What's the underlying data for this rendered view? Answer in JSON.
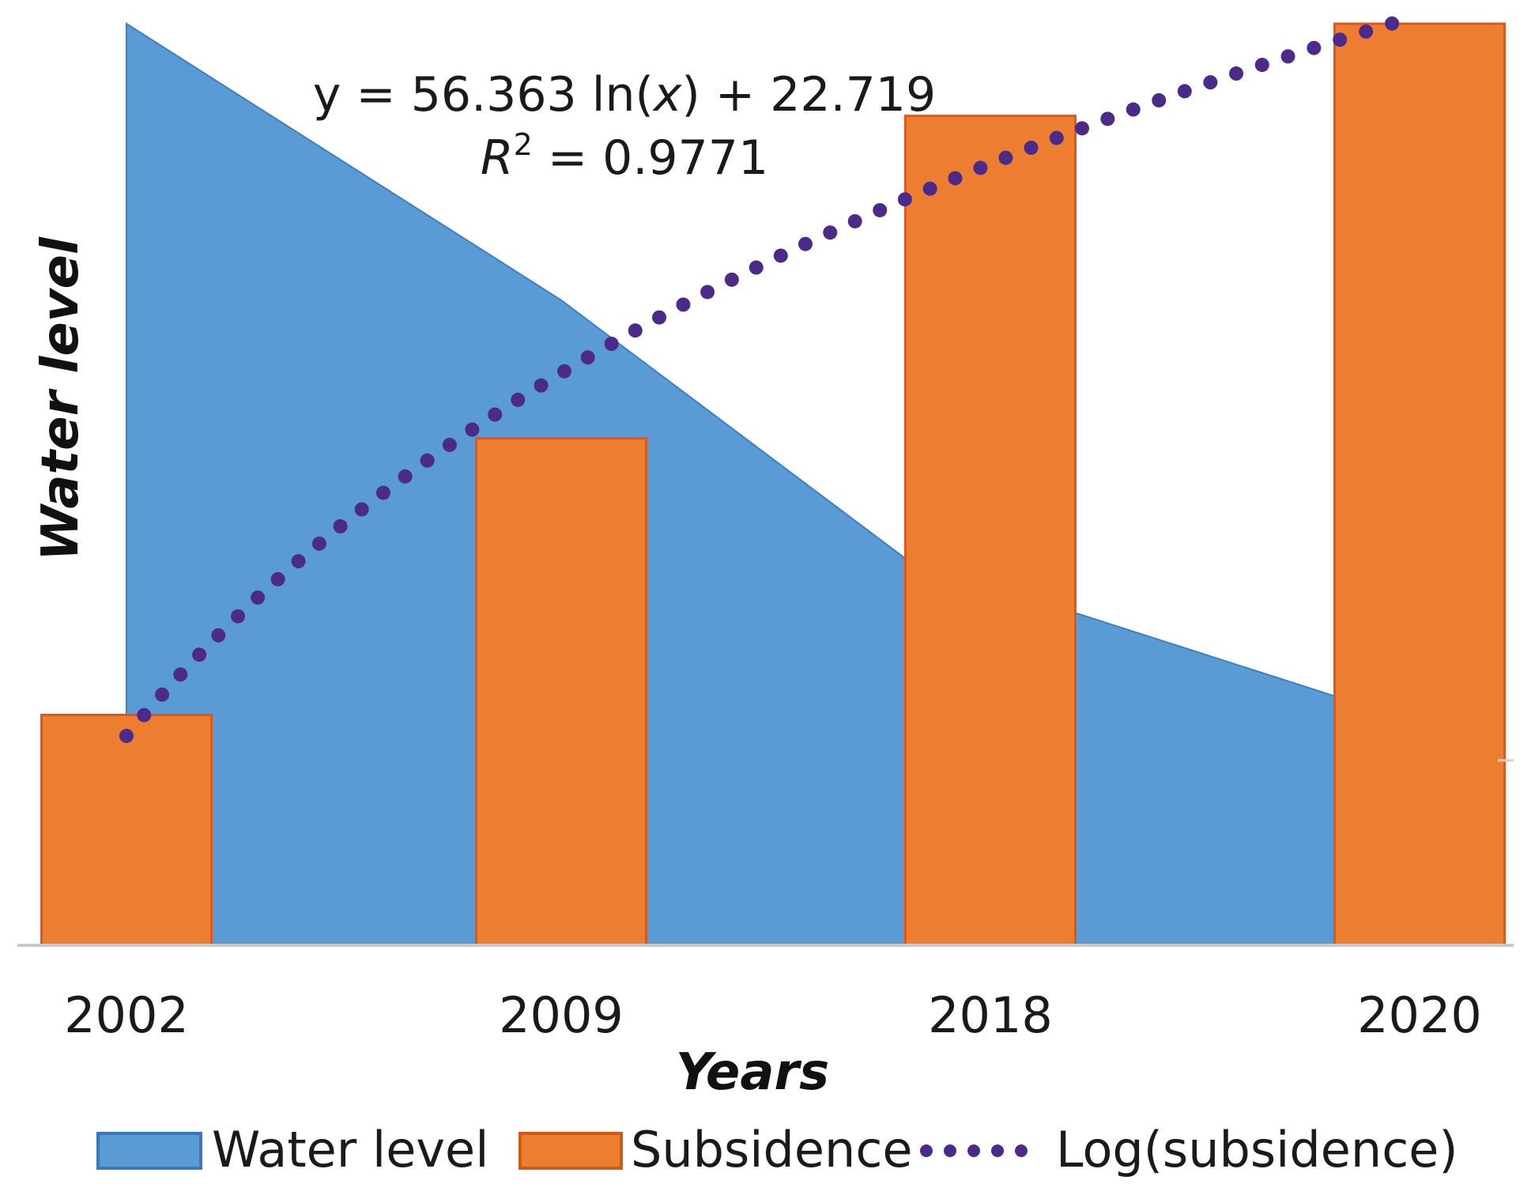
{
  "chart_data": {
    "type": "bar",
    "title": "",
    "xlabel": "Years",
    "ylabel": "Water level",
    "categories": [
      "2002",
      "2009",
      "2018",
      "2020"
    ],
    "ylim": [
      0,
      100
    ],
    "grid": false,
    "legend_position": "bottom",
    "series": [
      {
        "name": "Water level",
        "kind": "area",
        "values": [
          100,
          70,
          42,
          27
        ],
        "color": "#5b9bd5"
      },
      {
        "name": "Subsidence",
        "kind": "bar",
        "values": [
          25,
          55,
          90,
          100
        ],
        "color": "#ed7d31"
      },
      {
        "name": "Log(subsidence)",
        "kind": "trendline",
        "values": [
          22.719,
          61.79,
          84.64,
          100.85
        ],
        "color": "#4b2a8a"
      }
    ],
    "annotation": {
      "equation_prefix": "y = 56.363 ln(",
      "equation_var": "x",
      "equation_suffix": ") + 22.719",
      "r2_symbol": "R",
      "r2_exp": "2",
      "r2_value": " = 0.9771"
    }
  }
}
